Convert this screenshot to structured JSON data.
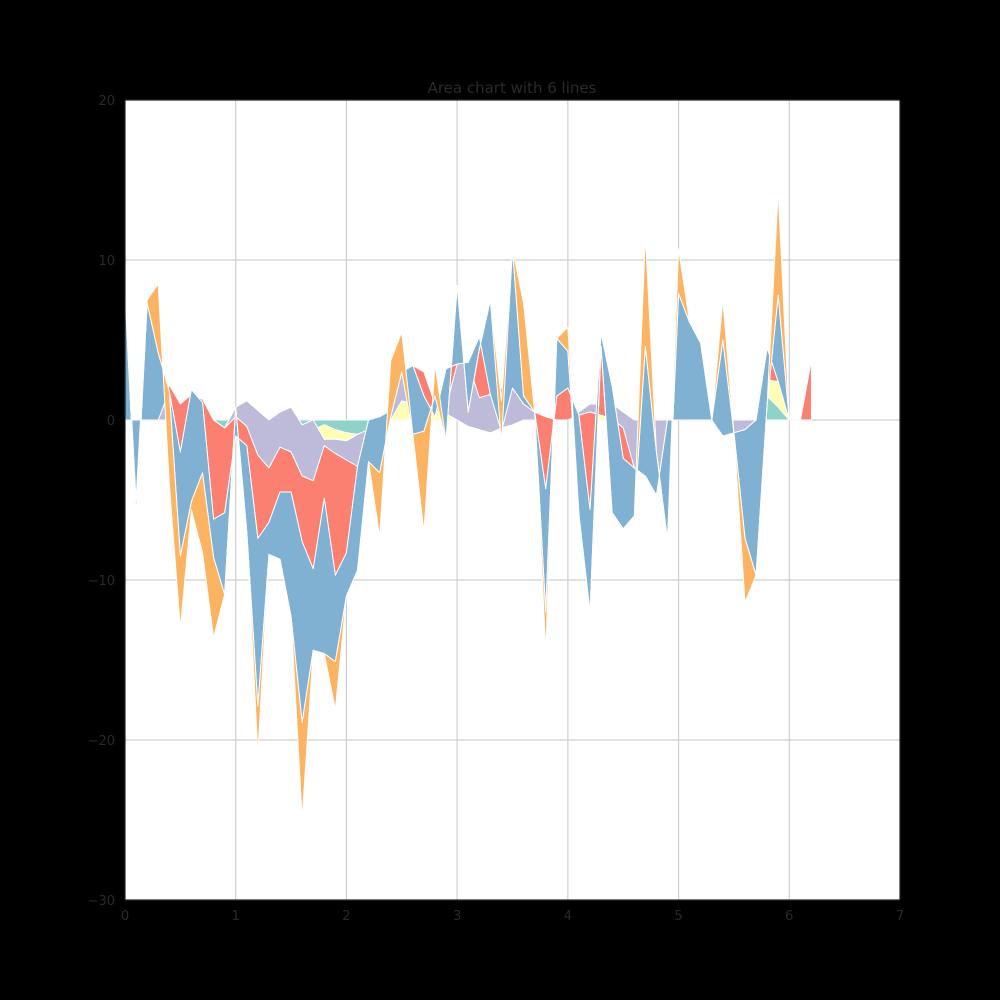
{
  "chart_data": {
    "type": "area",
    "stacked": true,
    "title": "Area chart with 6 lines",
    "xlabel": "",
    "ylabel": "",
    "xlim": [
      0,
      7
    ],
    "ylim": [
      -30,
      20
    ],
    "xticks": [
      0,
      1,
      2,
      3,
      4,
      5,
      6,
      7
    ],
    "yticks": [
      -30,
      -20,
      -10,
      0,
      10,
      20
    ],
    "grid": true,
    "legend": "none",
    "colors": [
      "#8dd3c7",
      "#ffffb3",
      "#bebada",
      "#fb8072",
      "#80b1d3",
      "#fdb462"
    ],
    "x": [
      0.0,
      0.1,
      0.2,
      0.3,
      0.4,
      0.5,
      0.6,
      0.7,
      0.8,
      0.9,
      1.0,
      1.1,
      1.2,
      1.3,
      1.4,
      1.5,
      1.6,
      1.7,
      1.8,
      1.9,
      2.0,
      2.1,
      2.2,
      2.3,
      2.4,
      2.5,
      2.6,
      2.7,
      2.8,
      2.9,
      3.0,
      3.1,
      3.2,
      3.3,
      3.4,
      3.5,
      3.6,
      3.7,
      3.8,
      3.9,
      4.0,
      4.1,
      4.2,
      4.3,
      4.4,
      4.5,
      4.6,
      4.7,
      4.8,
      4.9,
      5.0,
      5.1,
      5.2,
      5.3,
      5.4,
      5.5,
      5.6,
      5.7,
      5.8,
      5.9,
      6.0,
      6.1,
      6.2
    ],
    "series": [
      {
        "values": [
          0.0,
          0.0,
          0.0,
          0.0,
          0.0,
          0.0,
          0.0,
          0.0,
          0.0,
          -0.5,
          0.0,
          0.0,
          0.0,
          0.0,
          0.0,
          0.0,
          -0.8,
          -0.6,
          -0.3,
          -0.6,
          -0.8,
          -0.9,
          -0.6,
          -0.4,
          0.0,
          0.0,
          0.0,
          0.0,
          0.0,
          0.0,
          0.0,
          0.0,
          0.0,
          0.0,
          0.0,
          0.0,
          0.0,
          0.0,
          0.0,
          0.0,
          0.0,
          0.0,
          0.0,
          0.0,
          0.0,
          0.0,
          0.0,
          0.0,
          0.0,
          0.0,
          0.0,
          0.0,
          0.0,
          0.0,
          0.0,
          0.0,
          0.0,
          0.0,
          1.5,
          0.8,
          0.0,
          0.0,
          0.0
        ]
      },
      {
        "values": [
          0.0,
          0.0,
          0.0,
          0.0,
          0.0,
          0.0,
          0.0,
          0.0,
          0.0,
          0.0,
          0.8,
          1.2,
          0.6,
          0.0,
          0.5,
          0.8,
          0.5,
          0.6,
          -0.9,
          -0.6,
          -0.5,
          0.0,
          0.0,
          0.0,
          0.0,
          1.2,
          1.0,
          0.8,
          0.6,
          0.4,
          0.0,
          -0.4,
          -0.6,
          -0.8,
          -0.5,
          -0.3,
          0.0,
          0.0,
          0.0,
          0.0,
          0.0,
          0.5,
          1.0,
          1.0,
          1.0,
          0.5,
          0.0,
          0.0,
          0.0,
          0.0,
          0.0,
          0.0,
          0.0,
          0.0,
          0.0,
          0.0,
          0.0,
          0.0,
          1.0,
          1.6,
          0.0,
          0.0,
          0.0
        ]
      },
      {
        "values": [
          0.0,
          0.0,
          0.0,
          0.0,
          2.2,
          1.0,
          1.6,
          1.3,
          0.0,
          0.0,
          -0.6,
          -1.6,
          -2.8,
          -3.0,
          -2.2,
          -2.8,
          -3.2,
          -3.8,
          -0.4,
          -0.9,
          -1.2,
          -2.0,
          0.6,
          0.6,
          0.6,
          1.8,
          2.4,
          2.2,
          0.4,
          0.4,
          3.5,
          4.0,
          2.0,
          2.4,
          2.5,
          2.3,
          1.0,
          0.5,
          0.2,
          0.0,
          0.0,
          -0.2,
          -0.5,
          -0.7,
          -0.9,
          -1.0,
          -3.0,
          -3.5,
          -4.7,
          0.0,
          0.0,
          0.0,
          0.0,
          0.0,
          -1.0,
          -0.8,
          -0.6,
          0.0,
          0.0,
          0.0,
          0.0,
          0.0,
          0.0
        ]
      },
      {
        "values": [
          0.0,
          0.0,
          0.0,
          0.0,
          -0.4,
          -3.0,
          0.3,
          -0.2,
          -6.2,
          -5.3,
          -1.2,
          -1.2,
          -5.2,
          -3.4,
          -2.8,
          -2.5,
          -4.1,
          -5.5,
          -3.3,
          -7.6,
          -5.8,
          0.0,
          0.0,
          0.0,
          0.0,
          0.0,
          0.0,
          -1.5,
          -0.8,
          2.4,
          0.0,
          0.0,
          3.8,
          0.0,
          -2.7,
          0.0,
          0.0,
          0.0,
          -4.5,
          1.5,
          2.0,
          0.0,
          -6.1,
          5.1,
          2.0,
          -1.9,
          0.0,
          0.0,
          0.0,
          0.0,
          0.0,
          0.0,
          0.0,
          0.0,
          0.0,
          0.0,
          0.0,
          0.0,
          2.0,
          0.0,
          0.0,
          0.0,
          3.8
        ]
      },
      {
        "values": [
          8.0,
          -6.0,
          7.3,
          4.2,
          0.0,
          -6.5,
          -7.0,
          -4.4,
          -2.4,
          -5.1,
          1.8,
          -5.4,
          -10.5,
          -2.0,
          -4.2,
          -7.8,
          -11.3,
          -5.1,
          -9.7,
          -5.4,
          -2.7,
          -6.5,
          -2.6,
          -3.5,
          -0.4,
          0.0,
          -4.3,
          -2.2,
          1.3,
          -4.5,
          4.9,
          -3.1,
          -0.8,
          5.9,
          1.9,
          8.7,
          0.5,
          0.0,
          -7.7,
          3.6,
          2.3,
          -6.2,
          -6.4,
          -0.8,
          -7.9,
          -4.4,
          -3.0,
          8.1,
          2.7,
          -7.5,
          7.9,
          6.1,
          4.8,
          0.0,
          6.0,
          0.0,
          -6.8,
          -9.7,
          -3.5,
          5.4,
          0.0,
          0.0,
          0.0
        ]
      },
      {
        "values": [
          0.0,
          1.0,
          0.2,
          4.3,
          -5.8,
          -4.5,
          -0.5,
          -5.0,
          -5.0,
          0.0,
          0.0,
          0.0,
          -3.0,
          0.0,
          0.0,
          0.0,
          -6.0,
          0.0,
          0.0,
          -3.0,
          0.0,
          0.0,
          0.0,
          -4.0,
          3.5,
          2.5,
          0.0,
          -6.3,
          2.0,
          0.0,
          0.0,
          0.0,
          0.0,
          0.0,
          -2.6,
          0.0,
          5.8,
          0.0,
          -2.5,
          0.0,
          1.5,
          0.0,
          0.0,
          0.0,
          0.0,
          0.0,
          0.0,
          7.0,
          0.0,
          0.0,
          2.8,
          0.0,
          0.0,
          0.0,
          2.5,
          0.0,
          -4.0,
          0.0,
          0.0,
          6.5,
          0.0,
          0.0,
          0.0
        ]
      }
    ]
  }
}
